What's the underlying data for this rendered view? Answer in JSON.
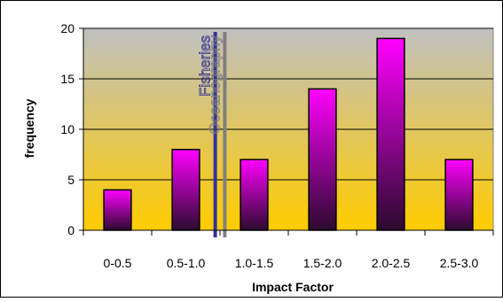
{
  "chart_data": {
    "type": "bar",
    "categories": [
      "0-0.5",
      "0.5-1.0",
      "1.0-1.5",
      "1.5-2.0",
      "2.0-2.5",
      "2.5-3.0"
    ],
    "values": [
      4,
      8,
      7,
      14,
      19,
      7
    ],
    "title": "",
    "xlabel": "Impact Factor",
    "ylabel": "frequency",
    "ylim": [
      0,
      20
    ],
    "yticks": [
      0,
      5,
      10,
      15,
      20
    ],
    "grid": true,
    "legend": "none",
    "colors": {
      "bar_top": "#ff00ff",
      "bar_bottom": "#2b0a2e",
      "background_top": "#c0c0c0",
      "background_bottom": "#ffcc00",
      "fisheries_line": "#333399",
      "oceanography_line": "#808080"
    },
    "annotations": [
      {
        "text": "Fisheries",
        "x": 1.43
      },
      {
        "text": "Oceanography",
        "x": 1.57
      }
    ]
  }
}
